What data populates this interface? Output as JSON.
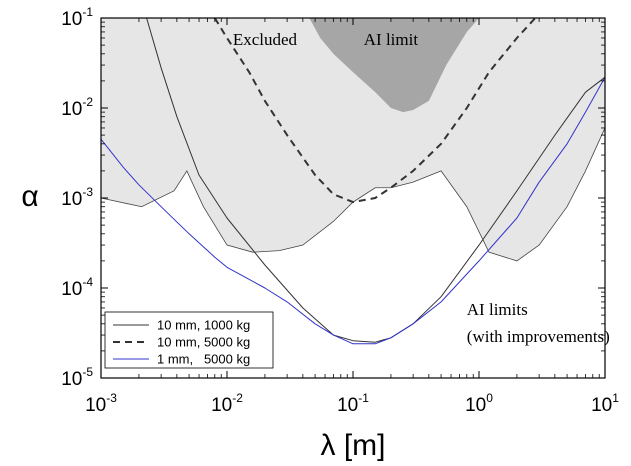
{
  "chart_data": {
    "type": "line",
    "xlabel": "λ [m]",
    "ylabel": "α",
    "xscale": "log",
    "yscale": "log",
    "xlim": [
      0.001,
      10
    ],
    "ylim": [
      1e-05,
      0.1
    ],
    "x_ticks": [
      {
        "base": "10",
        "exp": "-3",
        "value": 0.001
      },
      {
        "base": "10",
        "exp": "-2",
        "value": 0.01
      },
      {
        "base": "10",
        "exp": "-1",
        "value": 0.1
      },
      {
        "base": "10",
        "exp": "0",
        "value": 1
      },
      {
        "base": "10",
        "exp": "1",
        "value": 10
      }
    ],
    "y_ticks": [
      {
        "base": "10",
        "exp": "-5",
        "value": 1e-05
      },
      {
        "base": "10",
        "exp": "-4",
        "value": 0.0001
      },
      {
        "base": "10",
        "exp": "-3",
        "value": 0.001
      },
      {
        "base": "10",
        "exp": "-2",
        "value": 0.01
      },
      {
        "base": "10",
        "exp": "-1",
        "value": 0.1
      }
    ],
    "regions": [
      {
        "label": "Excluded",
        "color": "#e6e6e6",
        "boundary_x": [
          0.001,
          0.0021,
          0.0038,
          0.0048,
          0.0065,
          0.01,
          0.016,
          0.026,
          0.04,
          0.07,
          0.1,
          0.15,
          0.2,
          0.3,
          0.5,
          0.8,
          1.2,
          2,
          3,
          5,
          7,
          10
        ],
        "boundary_y": [
          0.001,
          0.0008,
          0.0012,
          0.002,
          0.0008,
          0.0003,
          0.00025,
          0.00026,
          0.0003,
          0.00055,
          0.0009,
          0.0013,
          0.0013,
          0.0015,
          0.002,
          0.0008,
          0.00025,
          0.0002,
          0.0003,
          0.0008,
          0.002,
          0.006
        ]
      },
      {
        "label": "AI limit",
        "color": "#a6a6a6",
        "boundary_x": [
          0.045,
          0.055,
          0.07,
          0.1,
          0.15,
          0.2,
          0.25,
          0.3,
          0.4,
          0.55,
          0.8,
          1.0
        ],
        "boundary_y": [
          0.1,
          0.06,
          0.04,
          0.025,
          0.015,
          0.01,
          0.009,
          0.0095,
          0.012,
          0.03,
          0.07,
          0.1
        ]
      }
    ],
    "series": [
      {
        "name": "10 mm, 1000 kg",
        "color": "#333333",
        "style": "solid",
        "x": [
          0.0023,
          0.003,
          0.004,
          0.006,
          0.01,
          0.02,
          0.04,
          0.07,
          0.1,
          0.15,
          0.2,
          0.3,
          0.5,
          1.0,
          2.0,
          4.0,
          7.0,
          10.0
        ],
        "y": [
          0.1,
          0.028,
          0.008,
          0.0018,
          0.0006,
          0.00018,
          6e-05,
          3e-05,
          2.6e-05,
          2.5e-05,
          2.8e-05,
          4e-05,
          8e-05,
          0.0003,
          0.0012,
          0.005,
          0.015,
          0.022
        ]
      },
      {
        "name": "10 mm, 5000 kg",
        "color": "#333333",
        "style": "dashed",
        "x": [
          0.008,
          0.01,
          0.015,
          0.02,
          0.03,
          0.05,
          0.07,
          0.1,
          0.15,
          0.2,
          0.3,
          0.5,
          0.8,
          1.2,
          2.0,
          2.8
        ],
        "y": [
          0.1,
          0.06,
          0.025,
          0.012,
          0.005,
          0.0018,
          0.0011,
          0.0009,
          0.001,
          0.0013,
          0.002,
          0.004,
          0.01,
          0.025,
          0.06,
          0.1
        ]
      },
      {
        "name": "1 mm,   5000 kg",
        "color": "#3333cc",
        "style": "solid",
        "x": [
          0.001,
          0.0015,
          0.002,
          0.003,
          0.005,
          0.008,
          0.01,
          0.02,
          0.03,
          0.05,
          0.07,
          0.1,
          0.15,
          0.2,
          0.3,
          0.5,
          1.0,
          2.0,
          3.0,
          5.0,
          7.0,
          10.0
        ],
        "y": [
          0.0045,
          0.0022,
          0.0014,
          0.0008,
          0.0004,
          0.00022,
          0.00017,
          0.0001,
          7e-05,
          4e-05,
          3e-05,
          2.4e-05,
          2.4e-05,
          2.8e-05,
          4e-05,
          7e-05,
          0.0002,
          0.0006,
          0.0015,
          0.004,
          0.009,
          0.022
        ]
      }
    ],
    "annotations": [
      {
        "text": "Excluded",
        "x": 0.02,
        "y": 0.05
      },
      {
        "text": "AI limit",
        "x": 0.2,
        "y": 0.05
      },
      {
        "text": "AI limits",
        "x": 0.8,
        "y": 5e-05
      },
      {
        "text": "(with improvements)",
        "x": 0.8,
        "y": 2.5e-05
      }
    ],
    "legend": {
      "position": "bottom-left",
      "entries": [
        "10 mm, 1000 kg",
        "10 mm, 5000 kg",
        "1 mm,   5000 kg"
      ]
    },
    "grid": false
  }
}
